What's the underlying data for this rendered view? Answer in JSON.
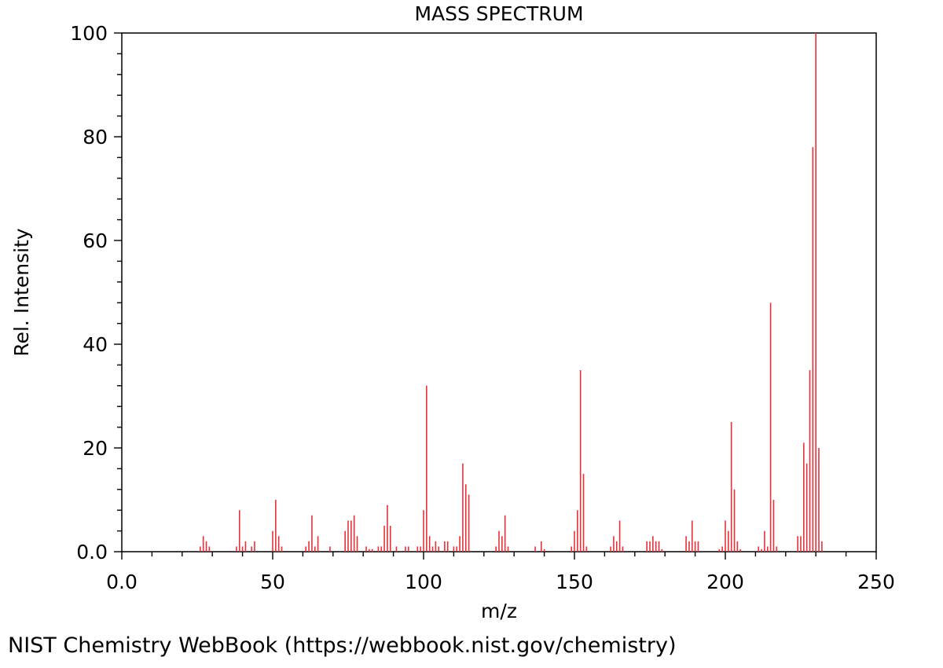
{
  "chart_data": {
    "type": "bar",
    "title": "MASS SPECTRUM",
    "xlabel": "m/z",
    "ylabel": "Rel. Intensity",
    "xlim": [
      0,
      250
    ],
    "ylim": [
      0,
      100
    ],
    "x_ticks": [
      {
        "value": 0,
        "label": "0.0"
      },
      {
        "value": 50,
        "label": "50"
      },
      {
        "value": 100,
        "label": "100"
      },
      {
        "value": 150,
        "label": "150"
      },
      {
        "value": 200,
        "label": "200"
      },
      {
        "value": 250,
        "label": "250"
      }
    ],
    "y_ticks": [
      {
        "value": 0,
        "label": "0.0"
      },
      {
        "value": 20,
        "label": "20"
      },
      {
        "value": 40,
        "label": "40"
      },
      {
        "value": 60,
        "label": "60"
      },
      {
        "value": 80,
        "label": "80"
      },
      {
        "value": 100,
        "label": "100"
      }
    ],
    "grid": false,
    "bar_color": "#e8303a",
    "peaks": [
      {
        "x": 26,
        "y": 1
      },
      {
        "x": 27,
        "y": 3
      },
      {
        "x": 28,
        "y": 2
      },
      {
        "x": 29,
        "y": 1
      },
      {
        "x": 38,
        "y": 1
      },
      {
        "x": 39,
        "y": 8
      },
      {
        "x": 40,
        "y": 1
      },
      {
        "x": 41,
        "y": 2
      },
      {
        "x": 43,
        "y": 1
      },
      {
        "x": 44,
        "y": 2
      },
      {
        "x": 50,
        "y": 4
      },
      {
        "x": 51,
        "y": 10
      },
      {
        "x": 52,
        "y": 3
      },
      {
        "x": 53,
        "y": 1
      },
      {
        "x": 61,
        "y": 1
      },
      {
        "x": 62,
        "y": 2
      },
      {
        "x": 63,
        "y": 7
      },
      {
        "x": 64,
        "y": 1
      },
      {
        "x": 65,
        "y": 3
      },
      {
        "x": 69,
        "y": 1
      },
      {
        "x": 74,
        "y": 4
      },
      {
        "x": 75,
        "y": 6
      },
      {
        "x": 76,
        "y": 6
      },
      {
        "x": 77,
        "y": 7
      },
      {
        "x": 78,
        "y": 3
      },
      {
        "x": 81,
        "y": 1
      },
      {
        "x": 82,
        "y": 0.5
      },
      {
        "x": 83,
        "y": 0.5
      },
      {
        "x": 85,
        "y": 1
      },
      {
        "x": 86,
        "y": 1
      },
      {
        "x": 87,
        "y": 5
      },
      {
        "x": 88,
        "y": 9
      },
      {
        "x": 89,
        "y": 5
      },
      {
        "x": 91,
        "y": 1
      },
      {
        "x": 94,
        "y": 1
      },
      {
        "x": 95,
        "y": 1
      },
      {
        "x": 98,
        "y": 1
      },
      {
        "x": 99,
        "y": 1
      },
      {
        "x": 100,
        "y": 8
      },
      {
        "x": 101,
        "y": 32
      },
      {
        "x": 102,
        "y": 3
      },
      {
        "x": 103,
        "y": 1
      },
      {
        "x": 104,
        "y": 2
      },
      {
        "x": 105,
        "y": 1
      },
      {
        "x": 107,
        "y": 2
      },
      {
        "x": 108,
        "y": 2
      },
      {
        "x": 110,
        "y": 1
      },
      {
        "x": 111,
        "y": 1
      },
      {
        "x": 112,
        "y": 3
      },
      {
        "x": 113,
        "y": 17
      },
      {
        "x": 114,
        "y": 13
      },
      {
        "x": 115,
        "y": 11
      },
      {
        "x": 124,
        "y": 1
      },
      {
        "x": 125,
        "y": 4
      },
      {
        "x": 126,
        "y": 3
      },
      {
        "x": 127,
        "y": 7
      },
      {
        "x": 128,
        "y": 1
      },
      {
        "x": 137,
        "y": 1
      },
      {
        "x": 139,
        "y": 2
      },
      {
        "x": 140,
        "y": 0.5
      },
      {
        "x": 149,
        "y": 1
      },
      {
        "x": 150,
        "y": 4
      },
      {
        "x": 151,
        "y": 8
      },
      {
        "x": 152,
        "y": 35
      },
      {
        "x": 153,
        "y": 15
      },
      {
        "x": 154,
        "y": 1
      },
      {
        "x": 162,
        "y": 1
      },
      {
        "x": 163,
        "y": 3
      },
      {
        "x": 164,
        "y": 2
      },
      {
        "x": 165,
        "y": 6
      },
      {
        "x": 166,
        "y": 1
      },
      {
        "x": 174,
        "y": 2
      },
      {
        "x": 175,
        "y": 2
      },
      {
        "x": 176,
        "y": 3
      },
      {
        "x": 177,
        "y": 2
      },
      {
        "x": 178,
        "y": 2
      },
      {
        "x": 179,
        "y": 0.5
      },
      {
        "x": 187,
        "y": 3
      },
      {
        "x": 188,
        "y": 2
      },
      {
        "x": 189,
        "y": 6
      },
      {
        "x": 190,
        "y": 2
      },
      {
        "x": 191,
        "y": 2
      },
      {
        "x": 198,
        "y": 0.5
      },
      {
        "x": 199,
        "y": 1
      },
      {
        "x": 200,
        "y": 6
      },
      {
        "x": 201,
        "y": 4
      },
      {
        "x": 202,
        "y": 25
      },
      {
        "x": 203,
        "y": 12
      },
      {
        "x": 204,
        "y": 2
      },
      {
        "x": 205,
        "y": 0.5
      },
      {
        "x": 211,
        "y": 1
      },
      {
        "x": 212,
        "y": 0.5
      },
      {
        "x": 213,
        "y": 4
      },
      {
        "x": 214,
        "y": 1
      },
      {
        "x": 215,
        "y": 48
      },
      {
        "x": 216,
        "y": 10
      },
      {
        "x": 217,
        "y": 1
      },
      {
        "x": 224,
        "y": 3
      },
      {
        "x": 225,
        "y": 3
      },
      {
        "x": 226,
        "y": 21
      },
      {
        "x": 227,
        "y": 17
      },
      {
        "x": 228,
        "y": 35
      },
      {
        "x": 229,
        "y": 78
      },
      {
        "x": 230,
        "y": 100
      },
      {
        "x": 231,
        "y": 20
      },
      {
        "x": 232,
        "y": 2
      }
    ]
  },
  "footer": {
    "credit": "NIST Chemistry WebBook (https://webbook.nist.gov/chemistry)"
  }
}
